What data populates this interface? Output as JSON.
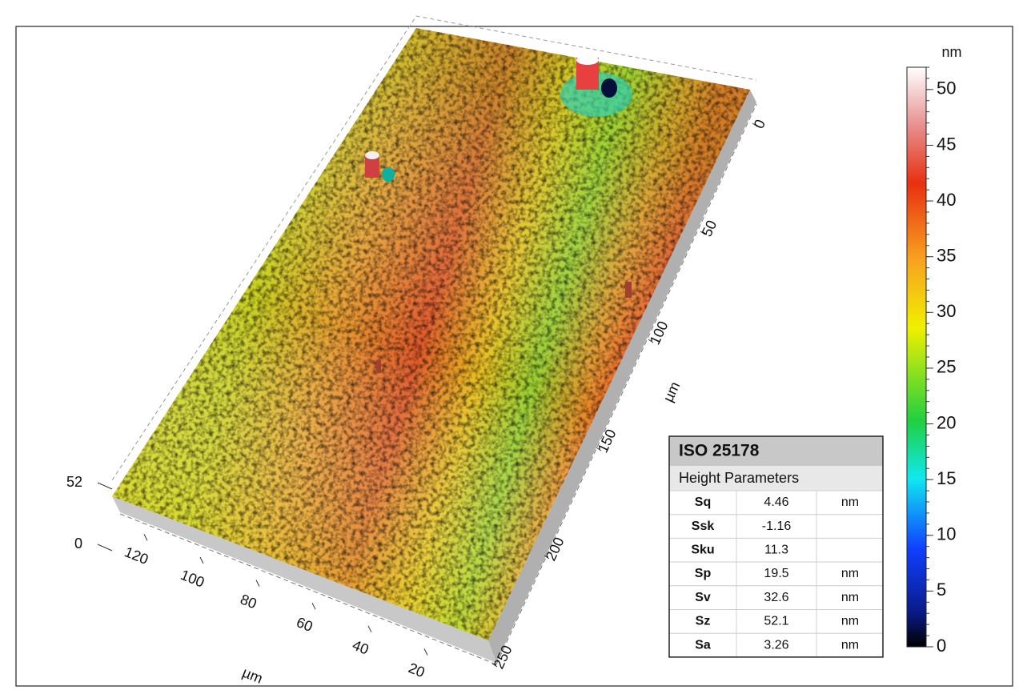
{
  "chart_data": {
    "type": "surface3d",
    "colorbar": {
      "label": "nm",
      "lim": [
        0,
        52
      ],
      "ticks": [
        0,
        5,
        10,
        15,
        20,
        25,
        30,
        35,
        40,
        45,
        50
      ]
    },
    "x_axis": {
      "label": "µm",
      "ticks": [
        0,
        50,
        100,
        150,
        200,
        250
      ]
    },
    "y_axis": {
      "label": "µm",
      "ticks": [
        20,
        40,
        60,
        80,
        100,
        120
      ]
    },
    "z_axis": {
      "ticks": [
        0,
        52
      ]
    },
    "table": {
      "title": "ISO 25178",
      "subtitle": "Height Parameters",
      "rows": [
        {
          "name": "Sq",
          "value": 4.46,
          "unit": "nm"
        },
        {
          "name": "Ssk",
          "value": -1.16
        },
        {
          "name": "Sku",
          "value": 11.3
        },
        {
          "name": "Sp",
          "value": 19.5,
          "unit": "nm"
        },
        {
          "name": "Sv",
          "value": 32.6,
          "unit": "nm"
        },
        {
          "name": "Sz",
          "value": 52.1,
          "unit": "nm"
        },
        {
          "name": "Sa",
          "value": 3.26,
          "unit": "nm"
        }
      ]
    }
  }
}
